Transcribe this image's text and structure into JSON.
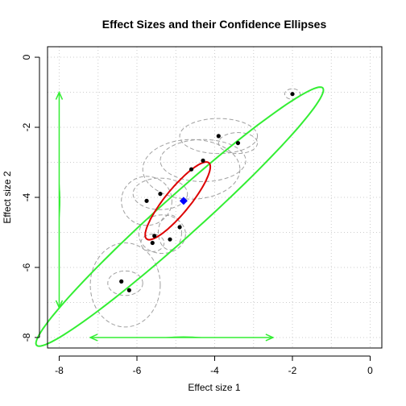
{
  "chart_data": {
    "type": "scatter",
    "title": "Effect Sizes and their Confidence Ellipses",
    "xlabel": "Effect size 1",
    "ylabel": "Effect size 2",
    "xlim": [
      -8,
      0
    ],
    "ylim": [
      -8,
      0
    ],
    "x_ticks": [
      -8,
      -6,
      -4,
      -2,
      0
    ],
    "y_ticks": [
      0,
      -2,
      -4,
      -6,
      -8
    ],
    "grid": true,
    "colors": {
      "points": "#000000",
      "study_ellipses": "#a0a0a0",
      "pooled_estimate": "#0000ff",
      "pooled_ellipse": "#dd0000",
      "prediction_ellipse": "#33ee33",
      "interval_arrows": "#33ee33",
      "grid": "#cccccc"
    },
    "points": [
      {
        "x": -2.0,
        "y": -1.05
      },
      {
        "x": -3.9,
        "y": -2.25
      },
      {
        "x": -3.4,
        "y": -2.45
      },
      {
        "x": -4.3,
        "y": -2.95
      },
      {
        "x": -4.6,
        "y": -3.2
      },
      {
        "x": -5.4,
        "y": -3.9
      },
      {
        "x": -5.75,
        "y": -4.1
      },
      {
        "x": -5.55,
        "y": -5.1
      },
      {
        "x": -5.6,
        "y": -5.3
      },
      {
        "x": -5.15,
        "y": -5.2
      },
      {
        "x": -4.9,
        "y": -4.85
      },
      {
        "x": -6.4,
        "y": -6.4
      },
      {
        "x": -6.2,
        "y": -6.65
      }
    ],
    "study_ellipses": [
      {
        "cx": -2.0,
        "cy": -1.05,
        "rx": 0.2,
        "ry": 0.15
      },
      {
        "cx": -3.9,
        "cy": -2.25,
        "rx": 1.0,
        "ry": 0.5
      },
      {
        "cx": -3.4,
        "cy": -2.45,
        "rx": 0.5,
        "ry": 0.3
      },
      {
        "cx": -4.3,
        "cy": -2.95,
        "rx": 1.1,
        "ry": 0.6
      },
      {
        "cx": -4.6,
        "cy": -3.2,
        "rx": 1.25,
        "ry": 0.85
      },
      {
        "cx": -5.4,
        "cy": -3.9,
        "rx": 0.7,
        "ry": 0.45
      },
      {
        "cx": -5.75,
        "cy": -4.1,
        "rx": 0.65,
        "ry": 0.7
      },
      {
        "cx": -5.35,
        "cy": -5.05,
        "rx": 0.6,
        "ry": 0.55
      },
      {
        "cx": -5.6,
        "cy": -5.3,
        "rx": 0.3,
        "ry": 0.25
      },
      {
        "cx": -5.15,
        "cy": -5.0,
        "rx": 0.3,
        "ry": 0.5
      },
      {
        "cx": -6.3,
        "cy": -6.5,
        "rx": 0.9,
        "ry": 1.2
      },
      {
        "cx": -6.3,
        "cy": -6.45,
        "rx": 0.45,
        "ry": 0.35
      }
    ],
    "pooled_estimate": {
      "x": -4.8,
      "y": -4.1
    },
    "pooled_ellipse": {
      "cx": -4.95,
      "cy": -4.1,
      "a": 1.35,
      "b": 0.33,
      "angle_deg": 54
    },
    "prediction_ellipse": {
      "cx": -4.9,
      "cy": -4.55,
      "a": 5.2,
      "b": 0.55,
      "angle_deg": 45
    },
    "intervals": {
      "y_interval": {
        "x": -8.0,
        "from": -1.0,
        "to": -7.15
      },
      "x_interval": {
        "y": -8.0,
        "from": -7.2,
        "to": -2.5
      }
    }
  }
}
